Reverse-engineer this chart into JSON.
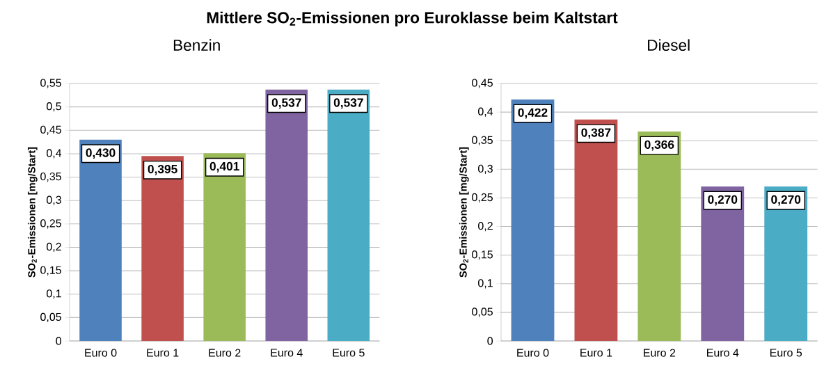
{
  "chart_data": [
    {
      "type": "bar",
      "title": "Mittlere SO$_{2}$-Emissionen pro Euroklasse beim Kaltstart",
      "subtitle": "Benzin",
      "ylabel": "SO$_{2}$-Emissionen  [mg/Start]",
      "categories": [
        "Euro 0",
        "Euro 1",
        "Euro 2",
        "Euro 4",
        "Euro 5"
      ],
      "values": [
        0.43,
        0.395,
        0.401,
        0.537,
        0.537
      ],
      "value_labels": [
        "0,430",
        "0,395",
        "0,401",
        "0,537",
        "0,537"
      ],
      "colors": [
        "#4f81bd",
        "#c0504d",
        "#9bbb59",
        "#8064a2",
        "#4bacc6"
      ],
      "ylim": [
        0,
        0.55
      ],
      "yticks": [
        0,
        {
          "value": 0.05,
          "label": "0,05"
        },
        {
          "value": 0.1,
          "label": "0,1"
        },
        {
          "value": 0.15,
          "label": "0,15"
        },
        {
          "value": 0.2,
          "label": "0,2"
        },
        {
          "value": 0.25,
          "label": "0,25"
        },
        {
          "value": 0.3,
          "label": "0,3"
        },
        {
          "value": 0.35,
          "label": "0,35"
        },
        {
          "value": 0.4,
          "label": "0,4"
        },
        {
          "value": 0.45,
          "label": "0,45"
        },
        {
          "value": 0.5,
          "label": "0,5"
        },
        {
          "value": 0.55,
          "label": "0,55"
        }
      ],
      "grid": "y"
    },
    {
      "type": "bar",
      "title": "Diesel",
      "ylabel": "SO$_{2}$-Emissionen  [mg/Start]",
      "categories": [
        "Euro 0",
        "Euro 1",
        "Euro 2",
        "Euro 4",
        "Euro 5"
      ],
      "values": [
        0.422,
        0.387,
        0.366,
        0.27,
        0.27
      ],
      "value_labels": [
        "0,422",
        "0,387",
        "0,366",
        "0,270",
        "0,270"
      ],
      "colors": [
        "#4f81bd",
        "#c0504d",
        "#9bbb59",
        "#8064a2",
        "#4bacc6"
      ],
      "ylim": [
        0,
        0.45
      ],
      "yticks": [
        0,
        {
          "value": 0.05,
          "label": "0,05"
        },
        {
          "value": 0.1,
          "label": "0,1"
        },
        {
          "value": 0.15,
          "label": "0,15"
        },
        {
          "value": 0.2,
          "label": "0,2"
        },
        {
          "value": 0.25,
          "label": "0,25"
        },
        {
          "value": 0.3,
          "label": "0,3"
        },
        {
          "value": 0.35,
          "label": "0,35"
        },
        {
          "value": 0.4,
          "label": "0,4"
        },
        {
          "value": 0.45,
          "label": "0,45"
        }
      ],
      "grid": "y"
    }
  ]
}
